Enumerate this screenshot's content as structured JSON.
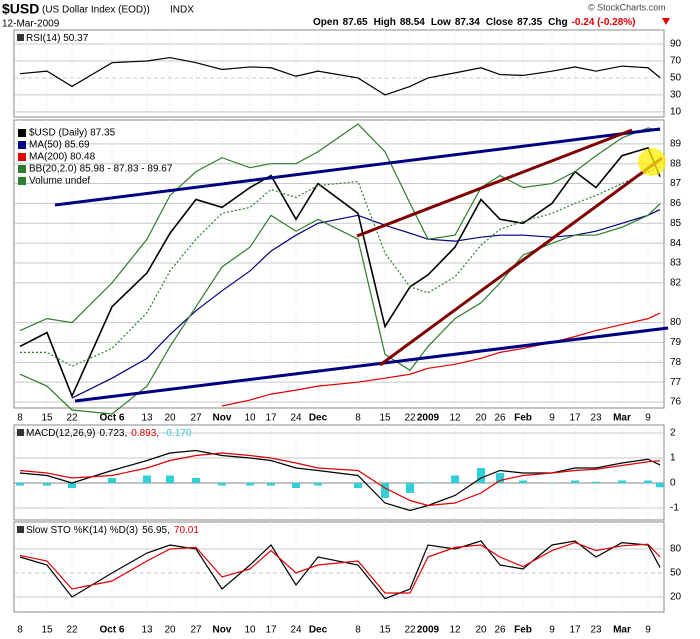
{
  "header": {
    "symbol": "$USD",
    "name": "(US Dollar Index (EOD))",
    "exchange": "INDX",
    "date": "12-Mar-2009",
    "copyright": "© StockCharts.com",
    "quote": [
      {
        "label": "Open",
        "value": 87.65
      },
      {
        "label": "High",
        "value": 88.54
      },
      {
        "label": "Low",
        "value": 87.34
      },
      {
        "label": "Close",
        "value": 87.35
      },
      {
        "label": "Chg",
        "value": "-0.24 (-0.28%)"
      }
    ]
  },
  "chart_data": [
    {
      "type": "line",
      "title": "RSI(14) 50.37",
      "ylim": [
        4,
        106.5
      ],
      "yticks": [
        90,
        70,
        50,
        30,
        10
      ],
      "grid": true,
      "series": [
        {
          "color": "#000000",
          "values": [
            55,
            58,
            40,
            68,
            70,
            74,
            68,
            60,
            63,
            62,
            52,
            58,
            50,
            30,
            40,
            50,
            56,
            62,
            54,
            53,
            58,
            63,
            58,
            64,
            62,
            50.37
          ]
        }
      ]
    },
    {
      "type": "line",
      "ylim": [
        75.7,
        90.2
      ],
      "yticks": [
        76,
        77,
        78,
        79,
        80,
        82,
        83,
        84,
        85,
        86,
        87,
        88,
        89
      ],
      "grid": true,
      "categories": [
        "8",
        "15",
        "22",
        "Oct 6",
        "13",
        "20",
        "27",
        "Nov",
        "10",
        "17",
        "24",
        "Dec",
        "8",
        "15",
        "22",
        "2009",
        "12",
        "20",
        "26",
        "Feb",
        "9",
        "17",
        "23",
        "Mar",
        "9",
        null
      ],
      "series": [
        {
          "name": "$USD (Daily) 87.35",
          "color": "#000000",
          "values": [
            78.8,
            79.5,
            76.3,
            80.8,
            82.5,
            84.5,
            86.2,
            85.8,
            86.8,
            87.4,
            85.2,
            87.0,
            85.5,
            79.8,
            81.8,
            82.4,
            83.8,
            86.2,
            85.2,
            85.0,
            86.0,
            87.6,
            86.8,
            88.4,
            88.8,
            87.35
          ]
        },
        {
          "name": "MA(50) 85.69",
          "color": "#000080",
          "values": [
            null,
            null,
            76.2,
            77.2,
            78.2,
            79.4,
            80.6,
            81.6,
            82.6,
            83.6,
            84.4,
            85.0,
            85.4,
            84.9,
            84.5,
            84.2,
            84.1,
            84.3,
            84.4,
            84.4,
            84.3,
            84.4,
            84.6,
            85.0,
            85.4,
            85.69
          ]
        },
        {
          "name": "MA(200) 80.48",
          "color": "#e00000",
          "values": [
            null,
            null,
            null,
            null,
            null,
            null,
            null,
            75.8,
            76.1,
            76.4,
            76.6,
            76.8,
            77.0,
            77.2,
            77.4,
            77.7,
            77.9,
            78.2,
            78.5,
            78.7,
            79.0,
            79.3,
            79.6,
            79.9,
            80.2,
            80.48
          ]
        },
        {
          "name": "BB(20,2.0) 85.98 - 87.83 - 89.67",
          "color": "#2e7d2e",
          "upper": [
            79.6,
            80.2,
            80.0,
            82.0,
            84.2,
            86.4,
            87.6,
            88.3,
            87.8,
            88.0,
            88.0,
            88.6,
            90.0,
            88.6,
            86.0,
            84.2,
            84.4,
            86.8,
            87.4,
            86.8,
            87.0,
            87.6,
            88.4,
            89.3,
            89.8,
            89.67
          ],
          "middle": [
            78.5,
            78.5,
            77.8,
            78.7,
            80.5,
            82.6,
            84.2,
            85.5,
            85.8,
            86.7,
            86.3,
            86.9,
            87.1,
            83.5,
            81.8,
            81.5,
            82.3,
            83.9,
            84.7,
            85.1,
            85.5,
            86.0,
            86.4,
            87.0,
            87.6,
            87.83
          ],
          "lower": [
            77.4,
            76.8,
            75.6,
            75.4,
            76.8,
            78.8,
            80.8,
            82.8,
            83.8,
            85.4,
            84.6,
            85.2,
            84.2,
            78.4,
            77.6,
            78.8,
            80.2,
            81.0,
            82.0,
            83.4,
            84.0,
            84.4,
            84.4,
            84.8,
            85.4,
            85.98
          ]
        }
      ],
      "volume_label": "Volume undef",
      "volume_color": "#2e7d2e"
    },
    {
      "type": "line",
      "title": "MACD(12,26,9)",
      "ylim": [
        -1.48,
        2.32
      ],
      "yticks": [
        2,
        1,
        0,
        -1
      ],
      "grid": true,
      "series": [
        {
          "name": "0.723,",
          "color": "#000000",
          "values": [
            0.4,
            0.3,
            0.0,
            0.5,
            0.9,
            1.2,
            1.3,
            1.1,
            1.0,
            0.9,
            0.6,
            0.5,
            0.3,
            -0.8,
            -1.1,
            -0.9,
            -0.5,
            0.2,
            0.5,
            0.4,
            0.4,
            0.6,
            0.6,
            0.8,
            0.95,
            0.723
          ]
        },
        {
          "name": "0.893,",
          "color": "#e00000",
          "values": [
            0.5,
            0.4,
            0.2,
            0.3,
            0.6,
            0.9,
            1.1,
            1.2,
            1.1,
            1.0,
            0.8,
            0.6,
            0.5,
            -0.2,
            -0.7,
            -0.9,
            -0.8,
            -0.4,
            0.1,
            0.3,
            0.4,
            0.5,
            0.55,
            0.7,
            0.85,
            0.893
          ]
        }
      ],
      "histogram": {
        "name": "-0.170",
        "color": "#30d0d8",
        "values": [
          -0.1,
          -0.1,
          -0.2,
          0.2,
          0.3,
          0.3,
          0.2,
          -0.1,
          -0.1,
          -0.1,
          -0.2,
          -0.1,
          -0.2,
          -0.6,
          -0.4,
          0.0,
          0.3,
          0.6,
          0.4,
          0.1,
          0.0,
          0.1,
          0.05,
          0.1,
          0.1,
          -0.17
        ]
      }
    },
    {
      "type": "line",
      "title": "Slow STO %K(14) %D(3)",
      "ylim": [
        1.25,
        113.75
      ],
      "yticks": [
        80,
        50,
        20
      ],
      "grid": true,
      "categories": [
        "8",
        "15",
        "22",
        "Oct 6",
        "13",
        "20",
        "27",
        "Nov",
        "10",
        "17",
        "24",
        "Dec",
        "8",
        "15",
        "22",
        "2009",
        "12",
        "20",
        "26",
        "Feb",
        "9",
        "17",
        "23",
        "Mar",
        "9",
        null
      ],
      "series": [
        {
          "name": "56.95,",
          "color": "#000000",
          "values": [
            70,
            60,
            20,
            50,
            75,
            85,
            80,
            30,
            60,
            85,
            35,
            70,
            60,
            18,
            30,
            85,
            80,
            90,
            60,
            55,
            85,
            90,
            70,
            88,
            85,
            56.95
          ]
        },
        {
          "name": "70.01",
          "color": "#e00000",
          "values": [
            72,
            65,
            30,
            40,
            65,
            80,
            82,
            45,
            55,
            78,
            50,
            60,
            65,
            25,
            25,
            70,
            82,
            85,
            70,
            58,
            78,
            88,
            78,
            84,
            86,
            70.01
          ]
        }
      ]
    }
  ]
}
